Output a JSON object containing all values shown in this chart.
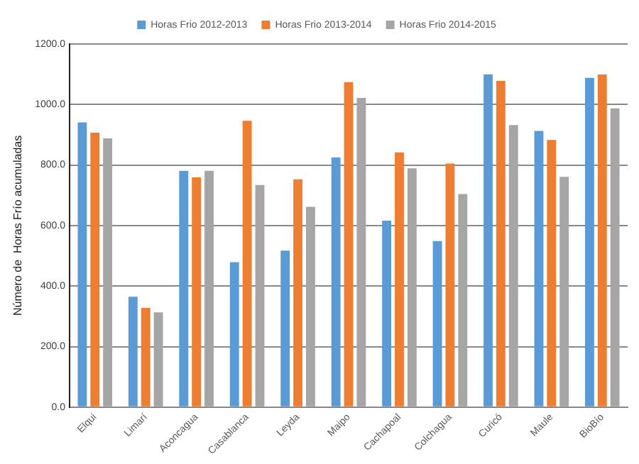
{
  "chart_data": {
    "type": "bar",
    "ylabel": "Número de  Horas Frío acumuladas",
    "categories": [
      "Elqui",
      "Limarí",
      "Aconcagua",
      "Casablanca",
      "Leyda",
      "Maipo",
      "Cachapoal",
      "Colchagua",
      "Curicó",
      "Maule",
      "BioBío"
    ],
    "series": [
      {
        "name": "Horas Frio 2012-2013",
        "color": "#5b9bd5",
        "values": [
          941,
          365,
          781,
          479,
          517,
          825,
          616,
          549,
          1100,
          913,
          1088
        ]
      },
      {
        "name": "Horas Frio 2013-2014",
        "color": "#ed7d31",
        "values": [
          907,
          328,
          759,
          946,
          753,
          1074,
          842,
          805,
          1078,
          883,
          1099
        ]
      },
      {
        "name": "Horas Frio 2014-2015",
        "color": "#a5a5a5",
        "values": [
          888,
          313,
          781,
          734,
          662,
          1022,
          789,
          704,
          932,
          761,
          987
        ]
      }
    ],
    "ylim": [
      0,
      1200
    ],
    "yticks": [
      {
        "value": 0,
        "label": "0.0"
      },
      {
        "value": 200,
        "label": "200.0"
      },
      {
        "value": 400,
        "label": "400.0"
      },
      {
        "value": 600,
        "label": "600.0"
      },
      {
        "value": 800,
        "label": "800.0"
      },
      {
        "value": 1000,
        "label": "1000.0"
      },
      {
        "value": 1200,
        "label": "1200.0"
      }
    ],
    "grid": "y",
    "legend": "top"
  }
}
